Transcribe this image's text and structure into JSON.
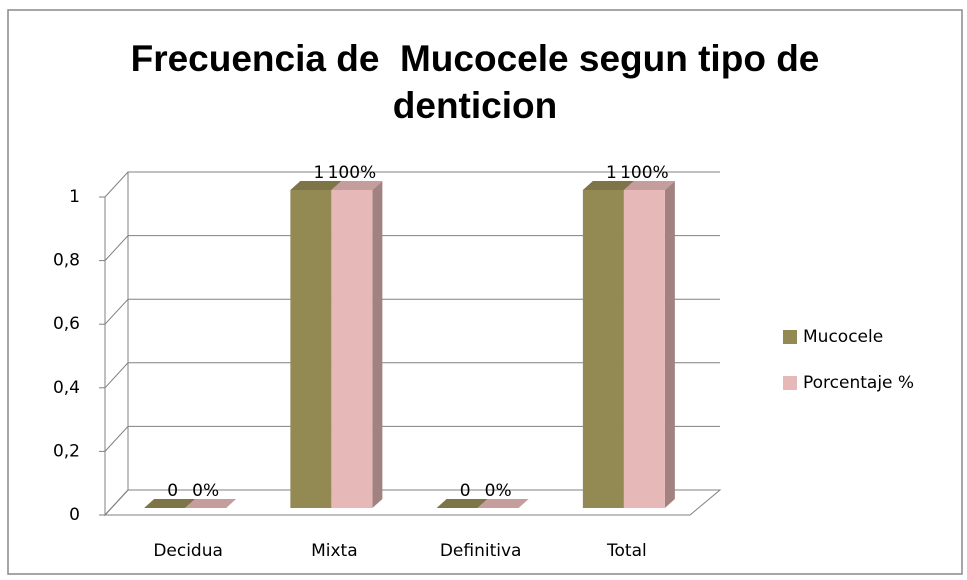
{
  "chart_data": {
    "type": "bar3d",
    "title": "Frecuencia de  Mucocele segun tipo de denticion",
    "categories": [
      "Decidua",
      "Mixta",
      "Definitiva",
      "Total"
    ],
    "series": [
      {
        "name": "Mucocele",
        "color": "#938953",
        "values": [
          0,
          1,
          0,
          1
        ]
      },
      {
        "name": "Porcentaje %",
        "color": "#e6b9b8",
        "values": [
          0,
          1,
          0,
          1
        ],
        "value_labels": [
          "0%",
          "100%",
          "0%",
          "100%"
        ]
      }
    ],
    "ylim": [
      0,
      1
    ],
    "yticks": [
      0,
      {
        "value": 0.2,
        "label": "0,2"
      },
      {
        "value": 0.4,
        "label": "0,4"
      },
      {
        "value": 0.6,
        "label": "0,6"
      },
      {
        "value": 0.8,
        "label": "0,8"
      },
      1
    ],
    "grid": true,
    "legend": "right"
  }
}
